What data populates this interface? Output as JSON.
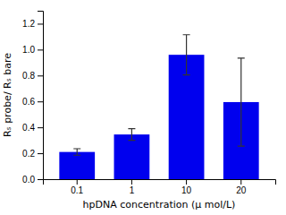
{
  "chart_data": {
    "type": "bar",
    "categories": [
      "0.1",
      "1",
      "10",
      "20"
    ],
    "values": [
      0.21,
      0.345,
      0.96,
      0.595
    ],
    "errors": [
      0.025,
      0.045,
      0.155,
      0.34
    ],
    "color": "#0000EE",
    "xlabel": "hpDNA concentration (μ mol/L)",
    "ylabel": "Rₛ probe/ Rₛ bare",
    "ylim": [
      0.0,
      1.3
    ],
    "yticks": [
      {
        "value": 0.0,
        "label": "0.0"
      },
      0.2,
      0.4,
      0.6,
      0.8,
      {
        "value": 1.0,
        "label": "1.0"
      },
      1.2
    ],
    "grid": false
  }
}
